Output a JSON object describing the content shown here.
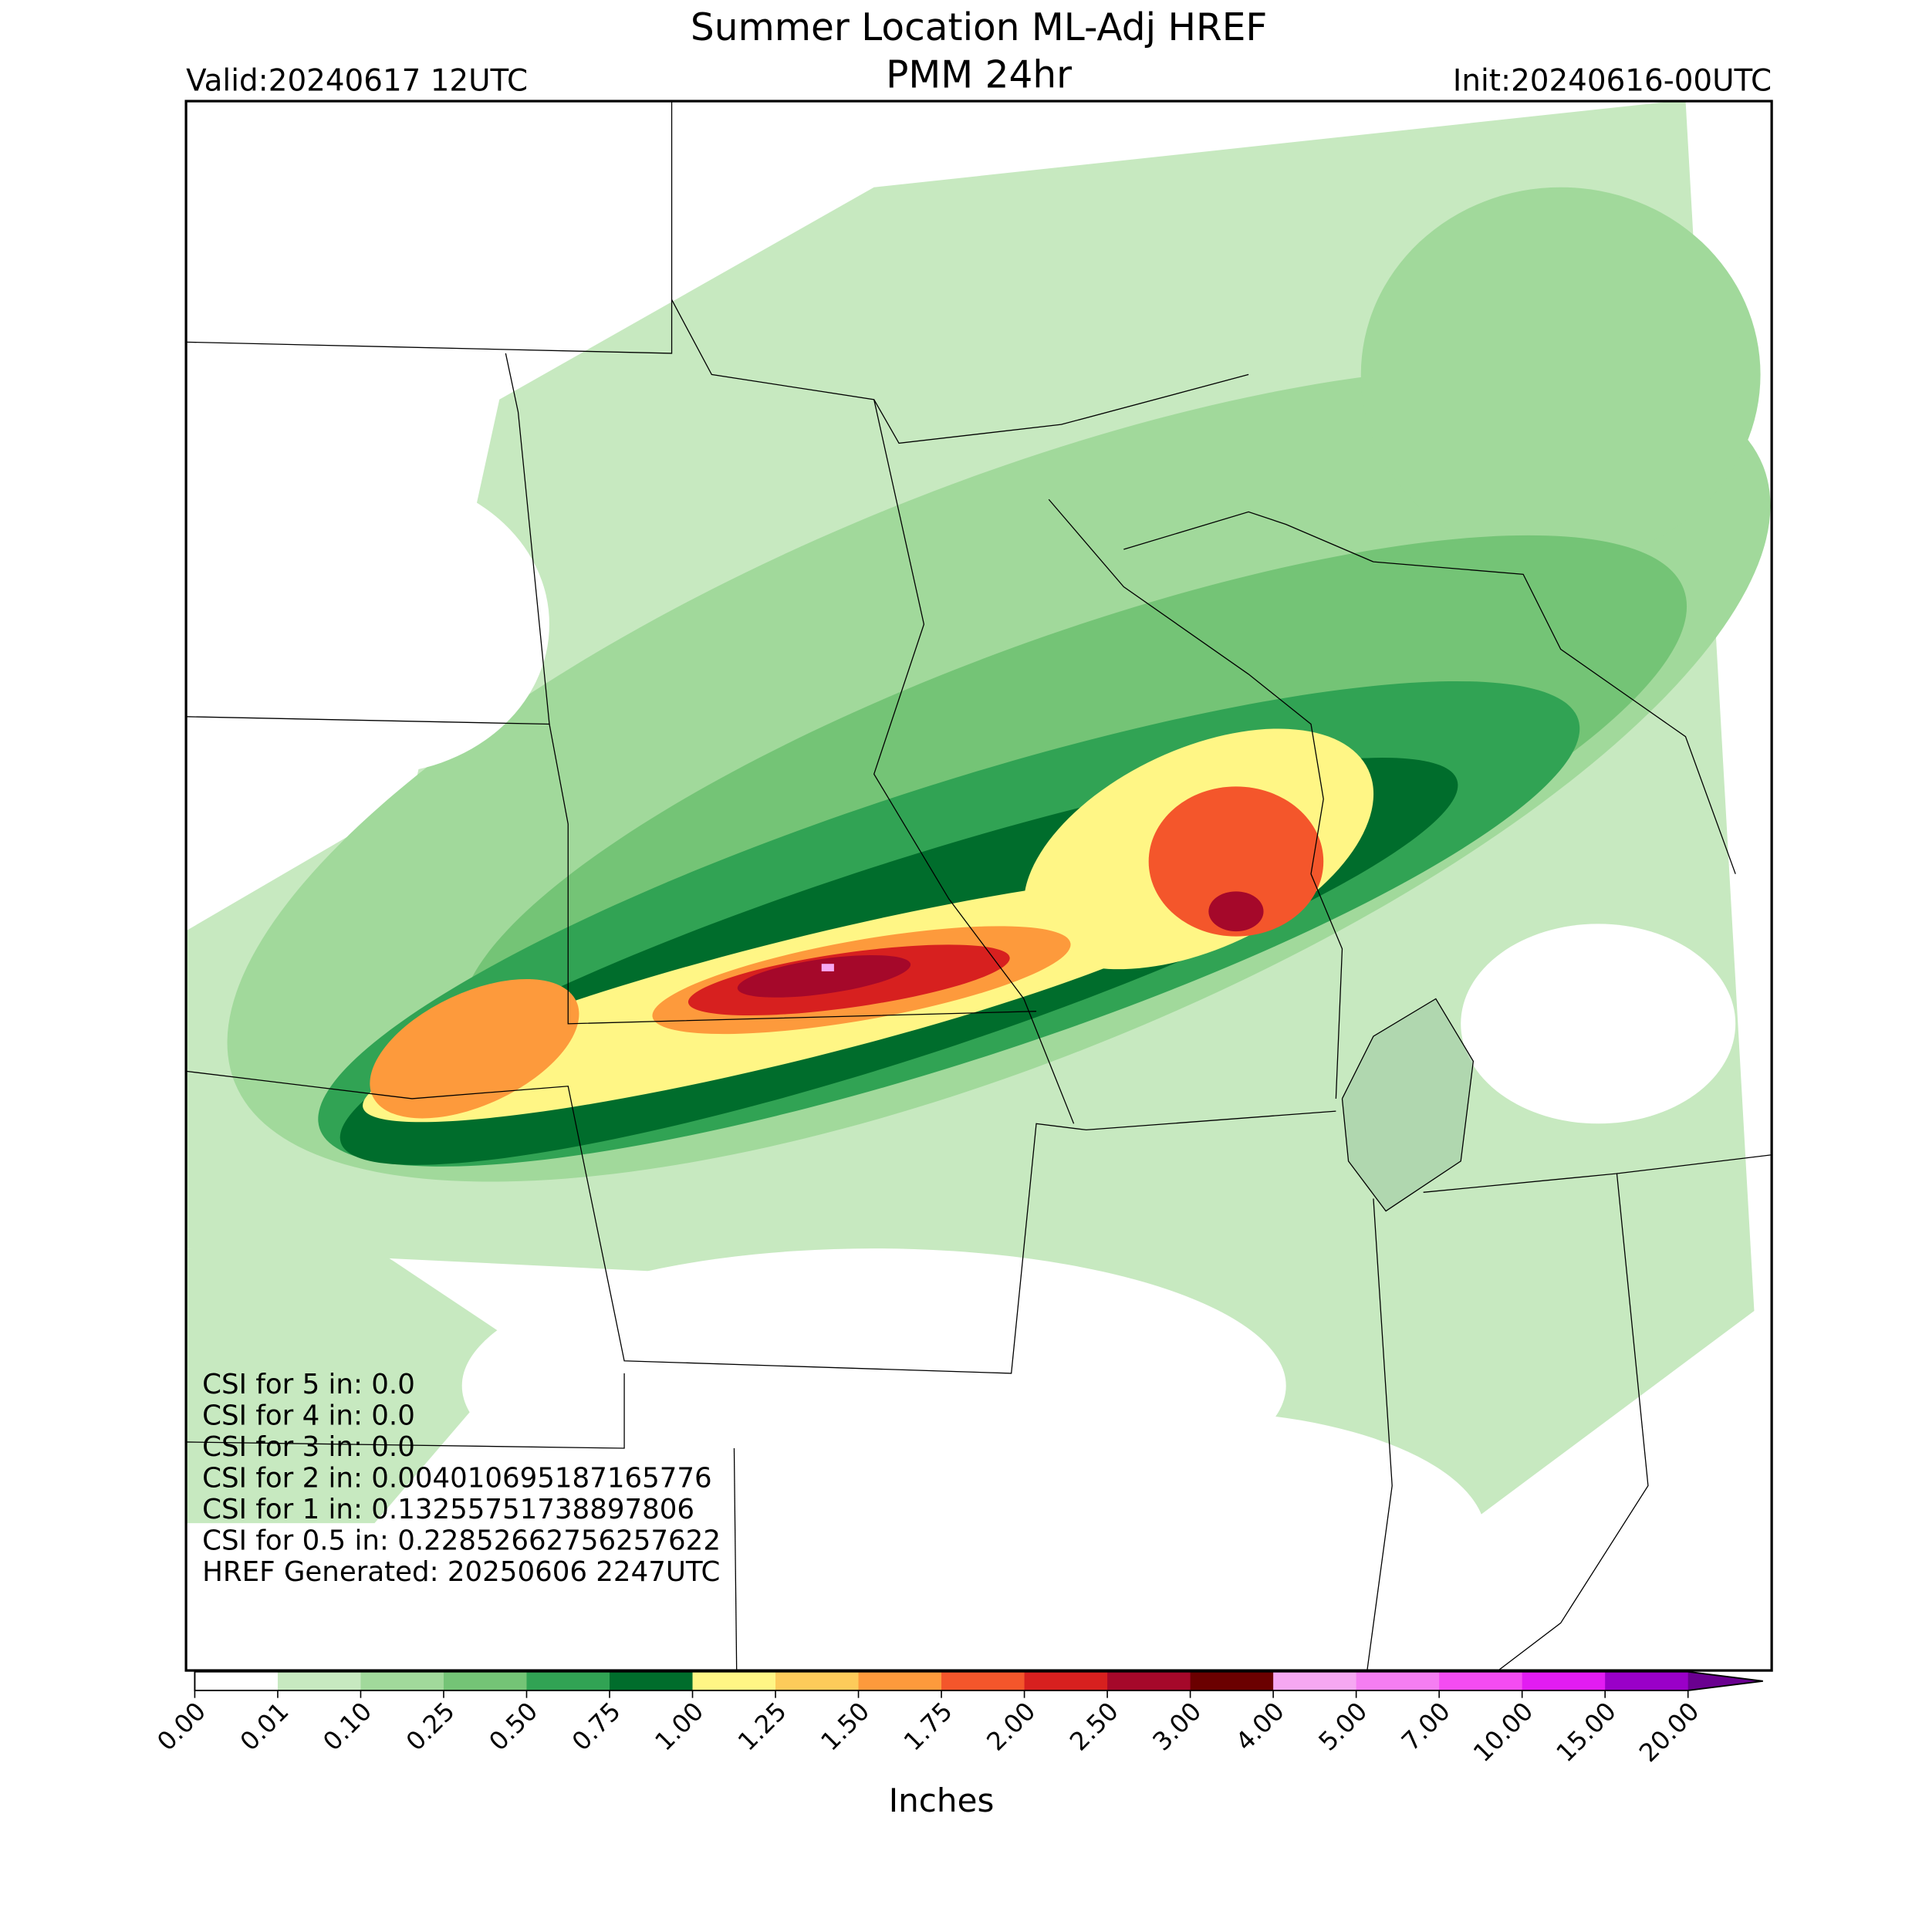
{
  "title": "Summer Location ML-Adj HREF",
  "subtitle": "PMM 24hr",
  "valid": "Valid:20240617 12UTC",
  "init": "Init:20240616-00UTC",
  "annotations": [
    "CSI for 5 in: 0.0",
    "CSI for 4 in: 0.0",
    "CSI for 3 in: 0.0",
    "CSI for 2 in: 0.004010695187165776",
    "CSI for 1 in: 0.13255751738897806",
    "CSI for 0.5 in: 0.22852662756257622",
    "HREF Generated: 20250606 2247UTC"
  ],
  "colorbar": {
    "label": "Inches",
    "ticks": [
      "0.00",
      "0.01",
      "0.10",
      "0.25",
      "0.50",
      "0.75",
      "1.00",
      "1.25",
      "1.50",
      "1.75",
      "2.00",
      "2.50",
      "3.00",
      "4.00",
      "5.00",
      "7.00",
      "10.00",
      "15.00",
      "20.00"
    ],
    "colors": [
      "#ffffff",
      "#c7e9c0",
      "#a1d99b",
      "#74c476",
      "#31a354",
      "#006d2c",
      "#fff685",
      "#fdcb5a",
      "#fd9a3c",
      "#f4562b",
      "#d7201f",
      "#a5082a",
      "#6b0000",
      "#f6a8f2",
      "#f57ef2",
      "#f44cf2",
      "#e21cf2",
      "#9a00c8"
    ],
    "extend_color": "#6a0090"
  }
}
